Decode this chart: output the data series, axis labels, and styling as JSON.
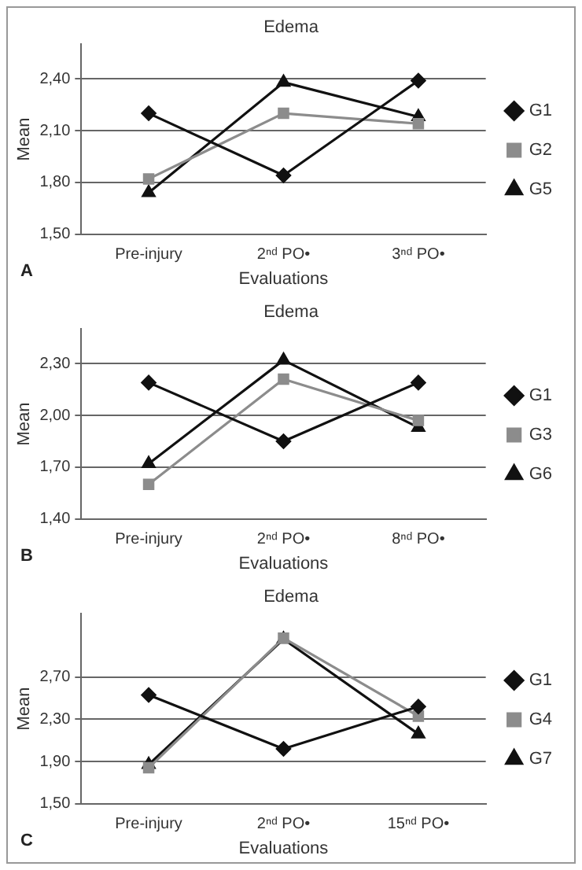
{
  "chart_data": [
    {
      "type": "line",
      "title": "Edema",
      "xlabel": "Evaluations",
      "ylabel": "Mean",
      "annotations": [
        "A"
      ],
      "categories": [
        "Pre-injury",
        "2ⁿᵈ PO•",
        "3ⁿᵈ PO•"
      ],
      "ylim": [
        1.5,
        2.6
      ],
      "yticks": [
        {
          "value": 1.5,
          "label": "1,50"
        },
        {
          "value": 1.8,
          "label": "1,80"
        },
        {
          "value": 2.1,
          "label": "2,10"
        },
        {
          "value": 2.4,
          "label": "2,40"
        }
      ],
      "grid": "y",
      "legend": "right",
      "series": [
        {
          "name": "G1",
          "color": "#111111",
          "marker": "diamond",
          "values": [
            2.2,
            1.84,
            2.39
          ]
        },
        {
          "name": "G2",
          "color": "#8c8c8c",
          "marker": "square",
          "values": [
            1.82,
            2.2,
            2.14
          ]
        },
        {
          "name": "G5",
          "color": "#111111",
          "marker": "triangle",
          "values": [
            1.74,
            2.38,
            2.18
          ]
        }
      ]
    },
    {
      "type": "line",
      "title": "Edema",
      "xlabel": "Evaluations",
      "ylabel": "Mean",
      "annotations": [
        "B"
      ],
      "categories": [
        "Pre-injury",
        "2ⁿᵈ PO•",
        "8ⁿᵈ PO•"
      ],
      "ylim": [
        1.4,
        2.5
      ],
      "yticks": [
        {
          "value": 1.4,
          "label": "1,40"
        },
        {
          "value": 1.7,
          "label": "1,70"
        },
        {
          "value": 2.0,
          "label": "2,00"
        },
        {
          "value": 2.3,
          "label": "2,30"
        }
      ],
      "grid": "y",
      "legend": "right",
      "series": [
        {
          "name": "G1",
          "color": "#111111",
          "marker": "diamond",
          "values": [
            2.19,
            1.85,
            2.19
          ]
        },
        {
          "name": "G3",
          "color": "#8c8c8c",
          "marker": "square",
          "values": [
            1.6,
            2.21,
            1.97
          ]
        },
        {
          "name": "G6",
          "color": "#111111",
          "marker": "triangle",
          "values": [
            1.72,
            2.32,
            1.93
          ]
        }
      ]
    },
    {
      "type": "line",
      "title": "Edema",
      "xlabel": "Evaluations",
      "ylabel": "Mean",
      "annotations": [
        "C"
      ],
      "categories": [
        "Pre-injury",
        "2ⁿᵈ PO•",
        "15ⁿᵈ PO•"
      ],
      "ylim": [
        1.5,
        3.3
      ],
      "yticks": [
        {
          "value": 1.5,
          "label": "1,50"
        },
        {
          "value": 1.9,
          "label": "1,90"
        },
        {
          "value": 2.3,
          "label": "2,30"
        },
        {
          "value": 2.7,
          "label": "2,70"
        }
      ],
      "grid": "y",
      "legend": "right",
      "series": [
        {
          "name": "G1",
          "color": "#111111",
          "marker": "diamond",
          "values": [
            2.53,
            2.02,
            2.42
          ]
        },
        {
          "name": "G4",
          "color": "#8c8c8c",
          "marker": "square",
          "values": [
            1.84,
            3.07,
            2.33
          ]
        },
        {
          "name": "G7",
          "color": "#111111",
          "marker": "triangle",
          "values": [
            1.87,
            3.06,
            2.16
          ]
        }
      ]
    }
  ]
}
